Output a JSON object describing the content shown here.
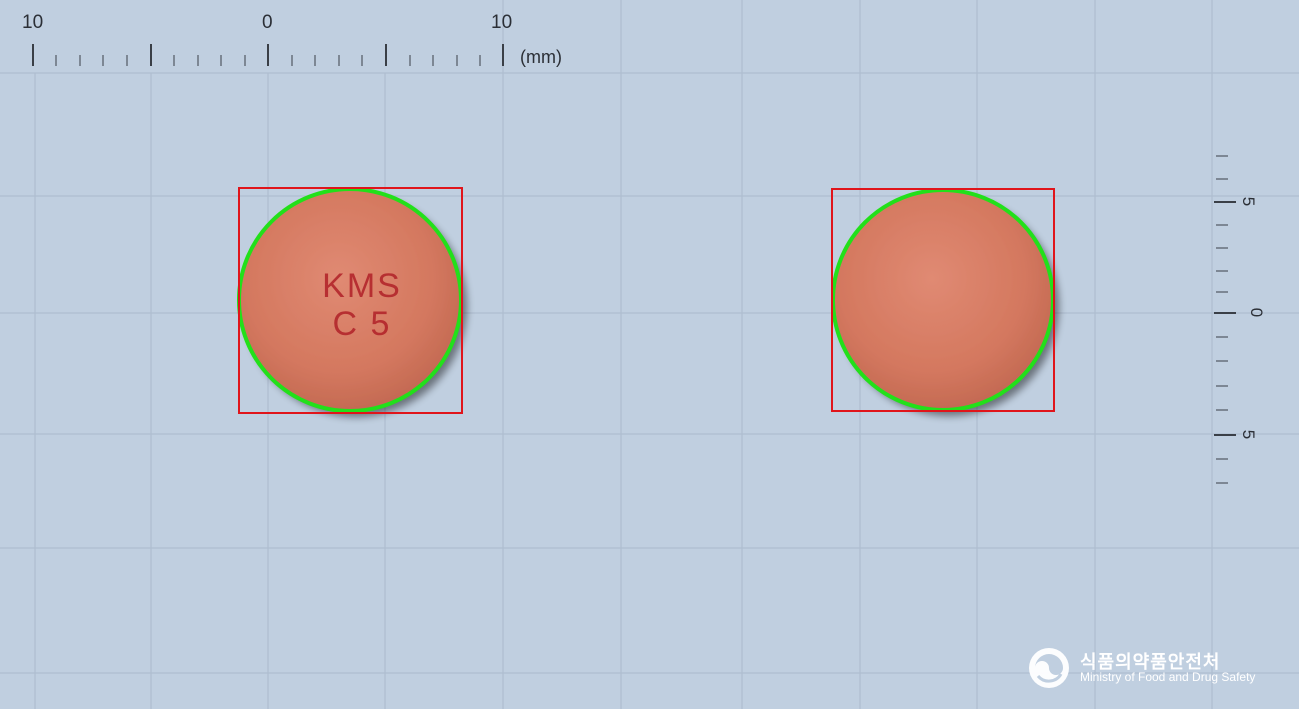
{
  "scale": {
    "top_labels": [
      "10",
      "0",
      "10"
    ],
    "unit": "(mm)",
    "right_labels": [
      "5",
      "0",
      "5"
    ]
  },
  "tablets": [
    {
      "name": "front",
      "imprint_line1": "KMS",
      "imprint_line2": "C 5",
      "color": "#d77a63"
    },
    {
      "name": "back",
      "imprint_line1": "",
      "imprint_line2": "",
      "color": "#d77a63"
    }
  ],
  "colors": {
    "background": "#c0cfe0",
    "grid": "#a9b9cc",
    "bounding_box": "#e0151b",
    "outline": "#22e01a",
    "imprint": "#b2242a"
  },
  "logo": {
    "korean": "식품의약품안전처",
    "english": "Ministry of Food and Drug Safety"
  }
}
